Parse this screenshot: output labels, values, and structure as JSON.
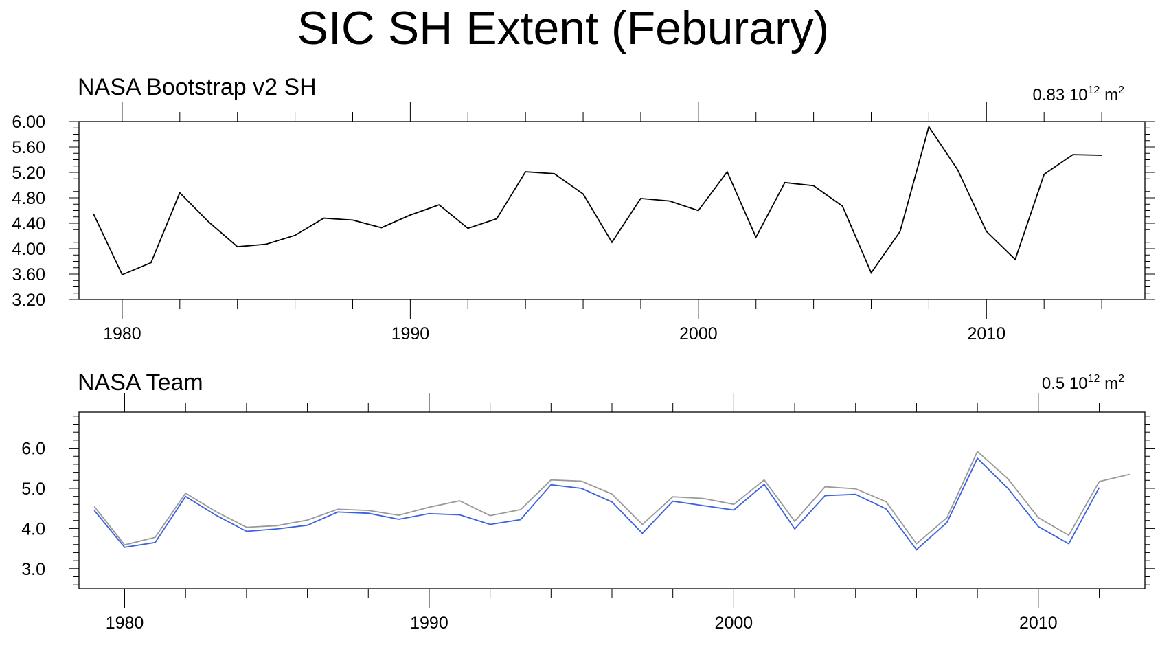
{
  "figure": {
    "title": "SIC SH Extent (Feburary)"
  },
  "chart_data": [
    {
      "type": "line",
      "title": "NASA Bootstrap v2 SH",
      "units_value": "0.83",
      "units_base": "10",
      "units_exp": "12",
      "units_unit": "m",
      "units_unit_exp": "2",
      "xlim": [
        1978.5,
        2015.5
      ],
      "ylim": [
        3.2,
        6.0
      ],
      "x_ticks": [
        1980,
        1990,
        2000,
        2010
      ],
      "x_tick_labels": [
        "1980",
        "1990",
        "2000",
        "2010"
      ],
      "y_ticks": [
        3.2,
        3.6,
        4.0,
        4.4,
        4.8,
        5.2,
        5.6,
        6.0
      ],
      "y_tick_labels": [
        "3.20",
        "3.60",
        "4.00",
        "4.40",
        "4.80",
        "5.20",
        "5.60",
        "6.00"
      ],
      "x_minor_step": 2,
      "y_minor_step": 0.1,
      "grid": false,
      "legend": "none",
      "series": [
        {
          "color": "#000000",
          "x": [
            1979,
            1980,
            1981,
            1982,
            1983,
            1984,
            1985,
            1986,
            1987,
            1988,
            1989,
            1990,
            1991,
            1992,
            1993,
            1994,
            1995,
            1996,
            1997,
            1998,
            1999,
            2000,
            2001,
            2002,
            2003,
            2004,
            2005,
            2006,
            2007,
            2008,
            2009,
            2010,
            2011,
            2012,
            2013,
            2014
          ],
          "values": [
            4.55,
            3.59,
            3.78,
            4.88,
            4.42,
            4.03,
            4.07,
            4.21,
            4.48,
            4.45,
            4.33,
            4.53,
            4.69,
            4.32,
            4.47,
            5.21,
            5.18,
            4.86,
            4.1,
            4.79,
            4.75,
            4.6,
            5.21,
            4.18,
            5.04,
            4.99,
            4.67,
            3.62,
            4.27,
            5.92,
            5.24,
            4.27,
            3.83,
            5.17,
            5.48,
            5.47
          ]
        }
      ]
    },
    {
      "type": "line",
      "title": "NASA Team",
      "units_value": "0.5",
      "units_base": "10",
      "units_exp": "12",
      "units_unit": "m",
      "units_unit_exp": "2",
      "xlim": [
        1978.5,
        2013.5
      ],
      "ylim": [
        2.5,
        6.9
      ],
      "x_ticks": [
        1980,
        1990,
        2000,
        2010
      ],
      "x_tick_labels": [
        "1980",
        "1990",
        "2000",
        "2010"
      ],
      "y_ticks": [
        3.0,
        4.0,
        5.0,
        6.0
      ],
      "y_tick_labels": [
        "3.0",
        "4.0",
        "5.0",
        "6.0"
      ],
      "x_minor_step": 2,
      "y_minor_step": 0.2,
      "grid": false,
      "legend": "none",
      "series": [
        {
          "color": "#999999",
          "x": [
            1979,
            1980,
            1981,
            1982,
            1983,
            1984,
            1985,
            1986,
            1987,
            1988,
            1989,
            1990,
            1991,
            1992,
            1993,
            1994,
            1995,
            1996,
            1997,
            1998,
            1999,
            2000,
            2001,
            2002,
            2003,
            2004,
            2005,
            2006,
            2007,
            2008,
            2009,
            2010,
            2011,
            2012,
            2013
          ],
          "values": [
            4.55,
            3.59,
            3.78,
            4.88,
            4.42,
            4.03,
            4.07,
            4.21,
            4.48,
            4.45,
            4.33,
            4.53,
            4.69,
            4.32,
            4.47,
            5.21,
            5.18,
            4.86,
            4.1,
            4.79,
            4.75,
            4.6,
            5.21,
            4.18,
            5.04,
            4.99,
            4.67,
            3.62,
            4.27,
            5.92,
            5.24,
            4.27,
            3.83,
            5.17,
            5.35
          ]
        },
        {
          "color": "#3a62e0",
          "x": [
            1979,
            1980,
            1981,
            1982,
            1983,
            1984,
            1985,
            1986,
            1987,
            1988,
            1989,
            1990,
            1991,
            1992,
            1993,
            1994,
            1995,
            1996,
            1997,
            1998,
            1999,
            2000,
            2001,
            2002,
            2003,
            2004,
            2005,
            2006,
            2007,
            2008,
            2009,
            2010,
            2011,
            2012
          ],
          "values": [
            4.45,
            3.53,
            3.65,
            4.8,
            4.33,
            3.93,
            3.99,
            4.08,
            4.41,
            4.38,
            4.23,
            4.37,
            4.34,
            4.1,
            4.22,
            5.09,
            5.0,
            4.66,
            3.88,
            4.68,
            4.57,
            4.46,
            5.1,
            3.99,
            4.82,
            4.85,
            4.49,
            3.47,
            4.15,
            5.75,
            5.0,
            4.05,
            3.62,
            5.02
          ]
        }
      ]
    }
  ]
}
